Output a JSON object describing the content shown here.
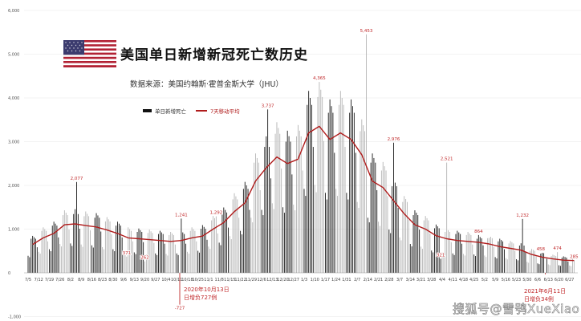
{
  "header": {
    "title": "美国单日新增新冠死亡数历史",
    "subtitle": "数据来源：美国约翰斯·霍普金斯大学（JHU）",
    "flag_icon": "us-flag-icon"
  },
  "legend": {
    "daily_label": "单日新增死亡",
    "ma_label": "7天移动平均"
  },
  "callouts": [
    {
      "line1": "2020年10月13日",
      "line2": "日增负727例"
    },
    {
      "line1": "2021年6月11日",
      "line2": "日增负34例"
    }
  ],
  "watermark": "搜狐号@雪鸮XueXiao",
  "chart_data": {
    "type": "bar+line",
    "title": "美国单日新增新冠死亡数历史",
    "start_date": "2020-07-05",
    "ylim": [
      -1000,
      6000
    ],
    "yticks": [
      "-1,000",
      "0",
      "1,000",
      "2,000",
      "3,000",
      "4,000",
      "5,000",
      "6,000"
    ],
    "ytick_values": [
      -1000,
      0,
      1000,
      2000,
      3000,
      4000,
      5000,
      6000
    ],
    "grid": true,
    "legend_position": "top-left",
    "colors": {
      "bars_dark": "#1a1a1a",
      "bars_light": "#b5b5b5",
      "moving_avg": "#b01c1c",
      "annotation": "#c0282a"
    },
    "xticks": [
      "7/5",
      "7/12",
      "7/19",
      "7/26",
      "8/2",
      "8/9",
      "8/16",
      "8/23",
      "8/30",
      "9/6",
      "9/13",
      "9/20",
      "9/27",
      "10/4",
      "10/11",
      "10/18",
      "10/25",
      "11/1",
      "11/8",
      "11/15",
      "11/22",
      "11/29",
      "12/6",
      "12/13",
      "12/20",
      "12/27",
      "1/3",
      "1/10",
      "1/17",
      "1/24",
      "1/31",
      "2/7",
      "2/14",
      "2/21",
      "2/28",
      "3/7",
      "3/14",
      "3/21",
      "3/28",
      "4/4",
      "4/11",
      "4/18",
      "4/25",
      "5/2",
      "5/9",
      "5/16",
      "5/23",
      "5/30",
      "6/6",
      "6/13",
      "6/20",
      "6/27"
    ],
    "series": [
      {
        "name": "单日新增死亡",
        "type": "bar",
        "values": [
          390,
          358,
          780,
          845,
          813,
          780,
          585,
          480,
          440,
          960,
          1040,
          1000,
          960,
          720,
          540,
          495,
          1080,
          1170,
          1125,
          1080,
          810,
          660,
          605,
          1320,
          1430,
          1375,
          1320,
          990,
          672,
          616,
          1344,
          1456,
          2077,
          1344,
          1008,
          648,
          594,
          1296,
          1404,
          1350,
          1296,
          972,
          630,
          578,
          1260,
          1365,
          1313,
          1260,
          945,
          588,
          539,
          1176,
          1274,
          1225,
          1176,
          882,
          540,
          495,
          1080,
          1170,
          1125,
          1080,
          810,
          480,
          440,
          371,
          1040,
          1000,
          960,
          720,
          468,
          429,
          936,
          1014,
          975,
          936,
          702,
          262,
          418,
          912,
          988,
          950,
          912,
          684,
          444,
          407,
          888,
          962,
          925,
          888,
          666,
          432,
          396,
          864,
          936,
          900,
          864,
          648,
          444,
          407,
          -727,
          1241,
          925,
          888,
          666,
          480,
          440,
          960,
          1040,
          1000,
          960,
          720,
          504,
          462,
          1008,
          1092,
          1050,
          1008,
          756,
          600,
          550,
          1200,
          1300,
          1250,
          1292,
          900,
          690,
          633,
          1380,
          1495,
          1438,
          1380,
          1035,
          840,
          770,
          1680,
          1820,
          1750,
          1680,
          1260,
          960,
          880,
          1920,
          2080,
          2000,
          1920,
          1440,
          1260,
          1155,
          2520,
          2730,
          2625,
          2520,
          1890,
          1440,
          1320,
          2880,
          3120,
          3737,
          2880,
          2160,
          1590,
          1458,
          3180,
          3445,
          3313,
          3180,
          2385,
          1500,
          1375,
          3000,
          3250,
          3125,
          3000,
          2250,
          1560,
          1430,
          3120,
          3380,
          3250,
          3120,
          2340,
          1920,
          1760,
          3840,
          4160,
          4000,
          3840,
          2880,
          2010,
          1843,
          4020,
          4365,
          4188,
          4020,
          3015,
          1830,
          1678,
          3660,
          3965,
          3813,
          3660,
          2745,
          1920,
          1760,
          3840,
          4160,
          4000,
          3840,
          2880,
          1830,
          1678,
          3660,
          3965,
          3813,
          3660,
          2745,
          1620,
          1485,
          3240,
          3510,
          3375,
          3240,
          5453,
          1260,
          1155,
          2520,
          2730,
          2625,
          2520,
          1890,
          1170,
          1073,
          2340,
          2535,
          2438,
          2340,
          1755,
          990,
          908,
          1980,
          2976,
          2063,
          1980,
          1485,
          810,
          743,
          1620,
          1755,
          1688,
          1620,
          1215,
          660,
          605,
          1320,
          1430,
          1375,
          1320,
          990,
          600,
          550,
          1200,
          1300,
          1250,
          1200,
          900,
          510,
          468,
          1020,
          1105,
          1063,
          1020,
          321,
          468,
          429,
          936,
          2521,
          975,
          936,
          702,
          444,
          407,
          888,
          962,
          925,
          888,
          666,
          432,
          396,
          864,
          936,
          900,
          864,
          648,
          420,
          385,
          780,
          864,
          820,
          790,
          630,
          396,
          363,
          792,
          800,
          825,
          792,
          594,
          360,
          330,
          720,
          780,
          750,
          720,
          540,
          336,
          308,
          672,
          728,
          700,
          672,
          504,
          312,
          286,
          624,
          676,
          1232,
          624,
          468,
          252,
          231,
          504,
          546,
          525,
          504,
          378,
          216,
          198,
          440,
          458,
          450,
          -34,
          324,
          192,
          176,
          384,
          416,
          400,
          384,
          474,
          174,
          160,
          348,
          377,
          363,
          348,
          261,
          168,
          154,
          336,
          285
        ]
      },
      {
        "name": "7天移动平均",
        "type": "line",
        "x": "xticks",
        "values": [
          650,
          800,
          900,
          1100,
          1120,
          1080,
          1050,
          980,
          900,
          800,
          780,
          760,
          740,
          720,
          740,
          800,
          840,
          1000,
          1150,
          1400,
          1600,
          2100,
          2400,
          2650,
          2500,
          2600,
          3200,
          3350,
          3050,
          3200,
          3050,
          2700,
          2100,
          1950,
          1650,
          1350,
          1100,
          1000,
          850,
          780,
          740,
          720,
          700,
          660,
          600,
          560,
          520,
          420,
          360,
          320,
          290,
          280
        ]
      }
    ],
    "annotations": [
      {
        "date": "2020-08-06",
        "value": 2077,
        "label": "2,077"
      },
      {
        "date": "2020-09-08",
        "value": 371,
        "label": "371"
      },
      {
        "date": "2020-09-20",
        "value": 262,
        "label": "262"
      },
      {
        "date": "2020-10-13",
        "value": -727,
        "label": "-727"
      },
      {
        "date": "2020-10-14",
        "value": 1241,
        "label": "1,241"
      },
      {
        "date": "2020-11-06",
        "value": 1292,
        "label": "1,292"
      },
      {
        "date": "2020-12-10",
        "value": 3737,
        "label": "3,737"
      },
      {
        "date": "2021-01-13",
        "value": 4365,
        "label": "4,365"
      },
      {
        "date": "2021-02-13",
        "value": 5453,
        "label": "5,453"
      },
      {
        "date": "2021-03-03",
        "value": 2976,
        "label": "2,976"
      },
      {
        "date": "2021-04-03",
        "value": 321,
        "label": "321"
      },
      {
        "date": "2021-04-07",
        "value": 2521,
        "label": "2,521"
      },
      {
        "date": "2021-04-28",
        "value": 864,
        "label": "864"
      },
      {
        "date": "2021-05-27",
        "value": 1232,
        "label": "1,232"
      },
      {
        "date": "2021-06-08",
        "value": 458,
        "label": "458"
      },
      {
        "date": "2021-06-19",
        "value": 474,
        "label": "474"
      },
      {
        "date": "2021-06-30",
        "value": 285,
        "label": "285"
      }
    ]
  }
}
